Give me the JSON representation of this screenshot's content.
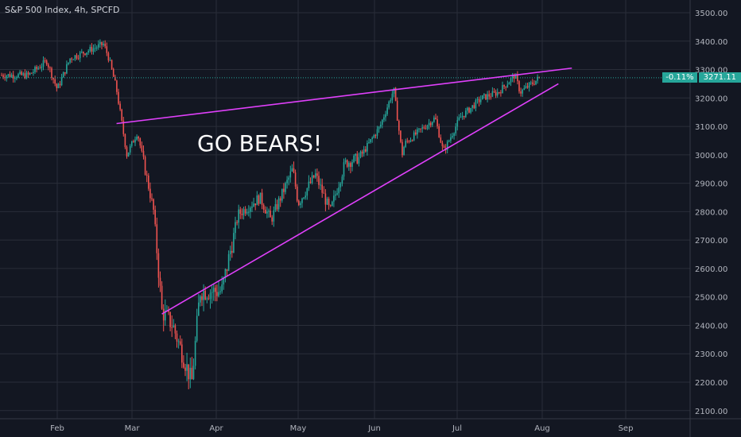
{
  "header": {
    "title": "S&P 500 Index, 4h, SPCFD"
  },
  "price_label": {
    "change": "-0.11%",
    "value": "3271.11"
  },
  "annotation": "GO BEARS!",
  "colors": {
    "background": "#131722",
    "grid": "#2a2e39",
    "up": "#26a69a",
    "down": "#ef5350",
    "trendline": "#e040fb",
    "axis_text": "#b2b5be"
  },
  "chart_data": {
    "type": "candlestick",
    "title": "S&P 500 Index, 4h, SPCFD",
    "ylim": [
      2050,
      3550
    ],
    "grid": true,
    "y_ticks": [
      "2100.00",
      "2200.00",
      "2300.00",
      "2400.00",
      "2500.00",
      "2600.00",
      "2700.00",
      "2800.00",
      "2900.00",
      "3000.00",
      "3100.00",
      "3200.00",
      "3300.00",
      "3400.00",
      "3500.00"
    ],
    "x_ticks": [
      "Feb",
      "Mar",
      "Apr",
      "May",
      "Jun",
      "Jul",
      "Aug",
      "Sep"
    ],
    "current_price": 3271.11,
    "price_path": [
      [
        "Jan 20",
        3280
      ],
      [
        "Jan 27",
        3330
      ],
      [
        "Jan 31",
        3230
      ],
      [
        "Feb 6",
        3340
      ],
      [
        "Feb 19",
        3390
      ],
      [
        "Feb 21",
        3340
      ],
      [
        "Feb 24",
        3230
      ],
      [
        "Feb 28",
        3000
      ],
      [
        "Mar 3",
        3080
      ],
      [
        "Mar 9",
        2800
      ],
      [
        "Mar 12",
        2450
      ],
      [
        "Mar 16",
        2400
      ],
      [
        "Mar 23",
        2200
      ],
      [
        "Mar 26",
        2520
      ],
      [
        "Apr 3",
        2520
      ],
      [
        "Apr 9",
        2790
      ],
      [
        "Apr 17",
        2850
      ],
      [
        "Apr 21",
        2770
      ],
      [
        "Apr 29",
        2950
      ],
      [
        "May 1",
        2830
      ],
      [
        "May 8",
        2930
      ],
      [
        "May 14",
        2800
      ],
      [
        "May 20",
        2970
      ],
      [
        "May 26",
        2990
      ],
      [
        "Jun 3",
        3100
      ],
      [
        "Jun 8",
        3230
      ],
      [
        "Jun 11",
        3000
      ],
      [
        "Jun 12",
        3040
      ],
      [
        "Jun 23",
        3130
      ],
      [
        "Jun 26",
        3010
      ],
      [
        "Jul 2",
        3130
      ],
      [
        "Jul 10",
        3200
      ],
      [
        "Jul 16",
        3220
      ],
      [
        "Jul 22",
        3280
      ],
      [
        "Jul 24",
        3220
      ],
      [
        "Jul 31",
        3271
      ]
    ],
    "trendlines": [
      {
        "from": [
          "Feb 24",
          3110
        ],
        "to": [
          "Aug 12",
          3305
        ]
      },
      {
        "from": [
          "Mar 12",
          2440
        ],
        "to": [
          "Aug 7",
          3250
        ]
      }
    ],
    "annotations": [
      "GO BEARS!"
    ]
  }
}
